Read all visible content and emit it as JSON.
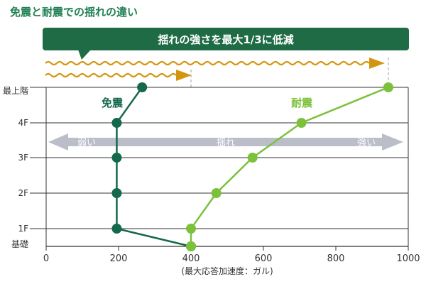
{
  "title": "免震と耐震での揺れの違い",
  "banner_text": "揺れの強さを最大1/3に低減",
  "shaking_arrow": {
    "left_label": "弱い",
    "center_label": "揺れ",
    "right_label": "強い"
  },
  "colors": {
    "title": "#1f7f53",
    "banner": "#1e6b45",
    "wave": "#d4950f",
    "menshin": "#14694a",
    "taishin": "#7cc13c",
    "grey_arrow": "#b9bec9",
    "grid": "#333333"
  },
  "chart_data": {
    "type": "line",
    "xlabel": "(最大応答加速度：ガル)",
    "xlim": [
      0,
      1000
    ],
    "xticks": [
      "0",
      "200",
      "400",
      "600",
      "800",
      "1000"
    ],
    "categories": [
      "基礎",
      "1F",
      "2F",
      "3F",
      "4F",
      "最上階"
    ],
    "series": [
      {
        "name": "免震",
        "values": [
          400,
          195,
          195,
          195,
          195,
          265
        ]
      },
      {
        "name": "耐震",
        "values": [
          400,
          400,
          470,
          570,
          705,
          945
        ]
      }
    ]
  }
}
